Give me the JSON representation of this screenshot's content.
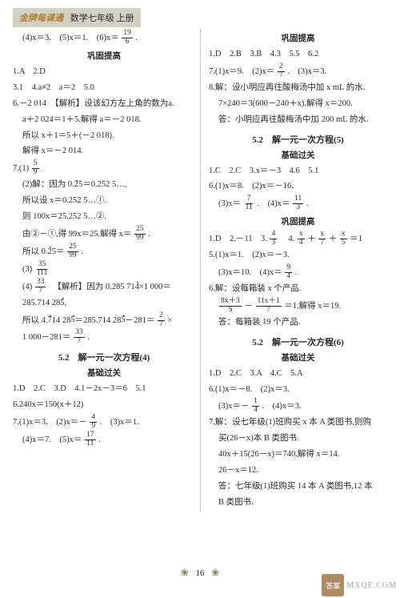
{
  "header": {
    "brand": "金牌每课通",
    "title": "数学七年级 上册"
  },
  "left": {
    "l1a": "(4)x＝3.　(5)x＝1.　(6)x＝",
    "l1_frac": {
      "n": "19",
      "d": "6"
    },
    "l1b": ".",
    "title1": "巩固提高",
    "l2": "1.A　2.D",
    "l3": "3.1　4.a≠2　a＝2　5.0",
    "l4a": "6.－2 014　【解析】设该幻方左上角的数为a.",
    "l4b": "a＋2 024＝1＋5.解得 a＝－2 018.",
    "l4c": "所以 x＋1＝5＋(－2 018).",
    "l4d": "解得 x＝－2 014.",
    "l5a": "7.(1)",
    "l5_frac": {
      "n": "5",
      "d": "9"
    },
    "l6a": "(2)解：因为 0.",
    "l6_dot2": "2",
    "l6b": "5＝0.252 5…,",
    "l7a": "所以设 x＝0.252 5…①.",
    "l8a": "则 100x＝25.252 5…②.",
    "l9a": "由②－①,得 99x＝25.解得 x＝",
    "l9_frac": {
      "n": "25",
      "d": "99"
    },
    "l9b": ".",
    "l10a": "所以 0.",
    "l10_dot2": "2",
    "l10b": "5＝",
    "l10_frac": {
      "n": "25",
      "d": "99"
    },
    "l10c": ".",
    "l11a": "(3)",
    "l11_frac": {
      "n": "35",
      "d": "111"
    },
    "l12a": "(4)",
    "l12_frac": {
      "n": "33",
      "d": "7"
    },
    "l12b": "　【解析】因为 0.285 71",
    "l12_dot4": "4",
    "l12c": "×1 000＝",
    "l13": "285.714 28",
    "l13_dot5": "5",
    "l13b": ",",
    "l14a": "所以 4.",
    "l14_dot7": "7",
    "l14b": "14 28",
    "l14_dot5": "5",
    "l14c": "＝285.714 28",
    "l14_dot5b": "5",
    "l14d": "－281＝",
    "l14_frac": {
      "n": "2",
      "d": "7"
    },
    "l14e": "×",
    "l15a": "1 000－281＝",
    "l15_frac": {
      "n": "33",
      "d": "7"
    },
    "l15b": ".",
    "title2": "5.2　解一元一次方程(4)",
    "sub2": "基础过关",
    "l16": "1.D　2.C　3.D　4.1－2x－3＝6　5.1",
    "l17": "6.240x＝150(x＋12)",
    "l18a": "7.(1)x＝3.　(2)x＝－",
    "l18_frac": {
      "n": "4",
      "d": "9"
    },
    "l18b": ".　(3)x＝1.",
    "l19a": "(4)x＝7.　(5)x＝",
    "l19_frac": {
      "n": "17",
      "d": "11"
    },
    "l19b": "."
  },
  "right": {
    "title1": "巩固提高",
    "r1": "1.D　2.B　3.B　4.3　5.5　6.2",
    "r2a": "7.(1)x＝9.　(2)x＝",
    "r2_frac": {
      "n": "2",
      "d": "7"
    },
    "r2b": ".　(3)x＝3.",
    "r3a": "8.解：设小明应再往酸梅汤中加 x mL 的水.",
    "r3b": "7×240＝3(600－240＋x).解得 x＝200.",
    "r3c": "答：小明应再往酸梅汤中加 200 mL 的水.",
    "title2": "5.2　解一元一次方程(5)",
    "sub2": "基础过关",
    "r4": "1.C　2.C　3.x＝－3　4.6　5.1",
    "r5": "6.(1)x＝8.　(2)x＝－16.",
    "r6a": "(3)x＝",
    "r6_frac1": {
      "n": "7",
      "d": "11"
    },
    "r6b": ".　(4)x＝",
    "r6_frac2": {
      "n": "11",
      "d": "3"
    },
    "r6c": ".",
    "title3": "巩固提高",
    "r7a": "1.D　2.－11　3.",
    "r7_frac1": {
      "n": "4",
      "d": "3"
    },
    "r7b": "　4.",
    "r7_frac2n": "x",
    "r7_frac2d": "4",
    "r7c": "＋",
    "r7_frac3n": "x",
    "r7_frac3d": "7",
    "r7d": "＋",
    "r7_frac4n": "x",
    "r7_frac4d": "5",
    "r7e": "＝1",
    "r8": "5.(1)x＝1.　(2)x＝－3.",
    "r9a": "(3)x＝10.　(4)x＝",
    "r9_frac": {
      "n": "9",
      "d": "4"
    },
    "r9b": ".",
    "r10": "6.解：设每箱装 x 个产品.",
    "r11_f1n": "8x＋3",
    "r11_f1d": "5",
    "r11a": "－",
    "r11_f2n": "11x＋1",
    "r11_f2d": "7",
    "r11b": "＝1.解得 x＝19.",
    "r12": "答：每箱装 19 个产品.",
    "title4": "5.2　解一元一次方程(6)",
    "sub4": "基础过关",
    "r13": "1.D　2.C　3.A　4.C　5.A",
    "r14": "6.(1)x＝－8.　(2)x＝3.",
    "r15a": "(3)x＝－",
    "r15_frac": {
      "n": "1",
      "d": "4"
    },
    "r15b": ".　(4)x＝3.",
    "r16a": "7.解：设七年级(1)班购买 x 本 A 类图书,则购",
    "r16b": "买(26－x)本 B 类图书.",
    "r16c": "40x＋15(26－x)＝740.解得 x＝14.",
    "r16d": "26－x＝12.",
    "r16e": "答：七年级(1)班购买 14 本 A 类图书,12 本",
    "r16f": "B 类图书."
  },
  "page": "16"
}
